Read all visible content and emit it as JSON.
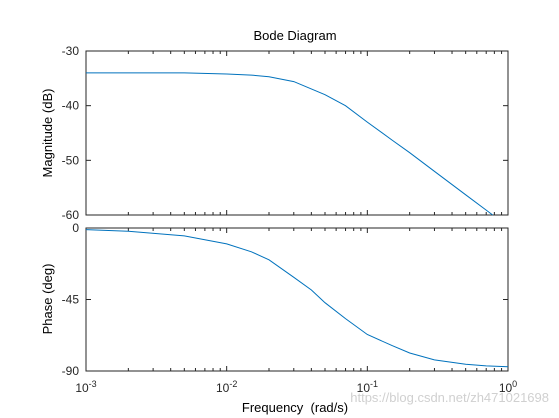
{
  "chart_data": {
    "type": "line",
    "title": "Bode Diagram",
    "xlabel": "Frequency  (rad/s)",
    "xscale": "log",
    "xlim": [
      0.001,
      1
    ],
    "xticks": [
      {
        "base": "10",
        "exp": "-3"
      },
      {
        "base": "10",
        "exp": "-2"
      },
      {
        "base": "10",
        "exp": "-1"
      },
      {
        "base": "10",
        "exp": "0"
      }
    ],
    "magnitude": {
      "ylabel": "Magnitude (dB)",
      "ylim": [
        -60,
        -30
      ],
      "yticks": [
        "-30",
        "-40",
        "-50",
        "-60"
      ],
      "x": [
        0.001,
        0.002,
        0.005,
        0.01,
        0.015,
        0.02,
        0.03,
        0.05,
        0.07,
        0.1,
        0.15,
        0.2,
        0.3,
        0.5,
        0.7,
        1.0
      ],
      "y": [
        -34.0,
        -34.0,
        -34.0,
        -34.2,
        -34.4,
        -34.7,
        -35.6,
        -38.0,
        -40.0,
        -43.0,
        -46.3,
        -48.6,
        -52.0,
        -56.3,
        -59.1,
        -62.1
      ]
    },
    "phase": {
      "ylabel": "Phase (deg)",
      "ylim": [
        -90,
        0
      ],
      "yticks": [
        "0",
        "-45",
        "-90"
      ],
      "x": [
        0.001,
        0.002,
        0.005,
        0.01,
        0.015,
        0.02,
        0.03,
        0.04,
        0.05,
        0.07,
        0.1,
        0.15,
        0.2,
        0.3,
        0.5,
        0.7,
        1.0
      ],
      "y": [
        -1.0,
        -2.0,
        -5.0,
        -10.0,
        -15.0,
        -20.0,
        -31.0,
        -39.0,
        -47.0,
        -57.0,
        -67.0,
        -74.0,
        -78.7,
        -83.0,
        -85.8,
        -86.8,
        -87.3
      ]
    }
  },
  "watermark": "https://blog.csdn.net/zh471021698"
}
